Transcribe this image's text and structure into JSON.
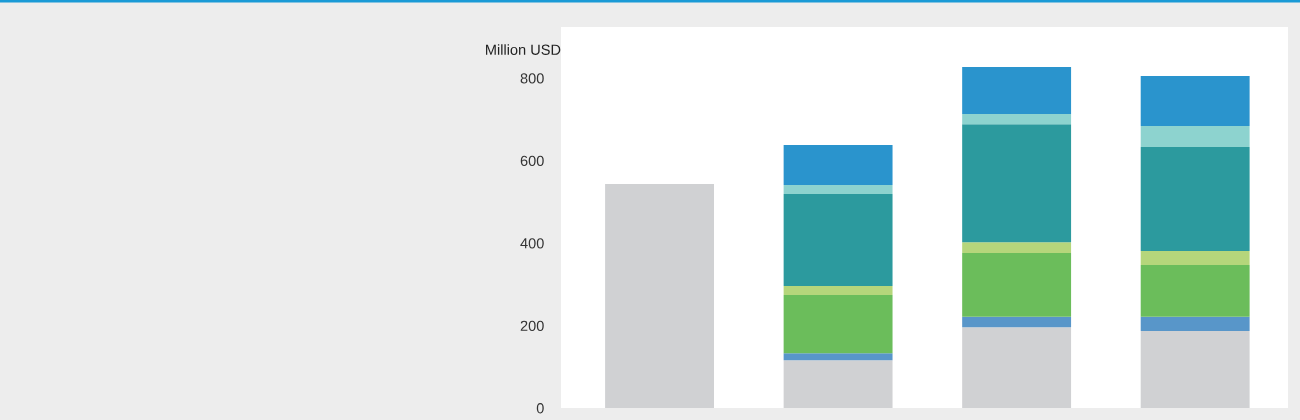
{
  "chart_data": {
    "type": "bar",
    "stacked": true,
    "ylabel": "Million USD",
    "categories": [
      null,
      null,
      null,
      null
    ],
    "series": [
      {
        "color": "#d0d1d3",
        "values": [
          543,
          116,
          196,
          187
        ]
      },
      {
        "color": "#5896c9",
        "values": [
          null,
          17,
          25,
          34
        ]
      },
      {
        "color": "#6bbd5b",
        "values": [
          null,
          141,
          155,
          126
        ]
      },
      {
        "color": "#b5d67b",
        "values": [
          null,
          22,
          26,
          34
        ]
      },
      {
        "color": "#2c9a9e",
        "values": [
          null,
          223,
          286,
          252
        ]
      },
      {
        "color": "#8dd3cf",
        "values": [
          null,
          22,
          25,
          51
        ]
      },
      {
        "color": "#2a94cd",
        "values": [
          null,
          97,
          114,
          121
        ]
      }
    ],
    "ylim": [
      0,
      924
    ],
    "yticks": [
      0,
      200,
      400,
      600,
      800
    ]
  }
}
